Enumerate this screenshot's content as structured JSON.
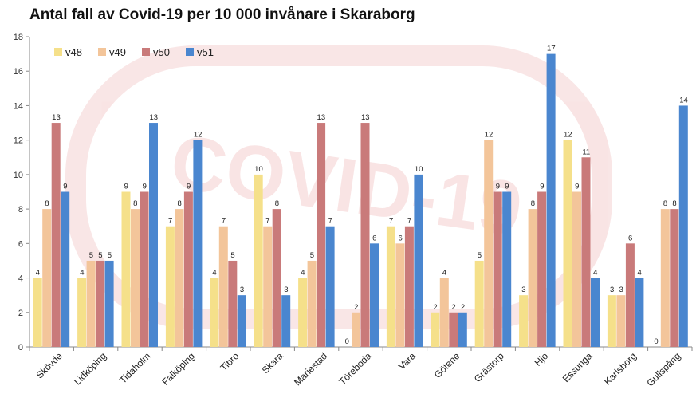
{
  "chart_data": {
    "type": "bar",
    "title": "Antal fall av Covid-19 per 10 000 invånare i Skaraborg",
    "categories": [
      "Skövde",
      "Lidköping",
      "Tidaholm",
      "Falköping",
      "Tibro",
      "Skara",
      "Mariestad",
      "Töreboda",
      "Vara",
      "Götene",
      "Grästorp",
      "Hjo",
      "Essunga",
      "Karlsborg",
      "Gullspång"
    ],
    "series": [
      {
        "name": "v48",
        "color": "#f5e08a",
        "values": [
          4,
          4,
          9,
          7,
          4,
          10,
          4,
          0,
          7,
          2,
          5,
          3,
          12,
          3,
          0
        ]
      },
      {
        "name": "v49",
        "color": "#f3c59a",
        "values": [
          8,
          5,
          8,
          8,
          7,
          7,
          5,
          2,
          6,
          4,
          12,
          8,
          9,
          3,
          8
        ]
      },
      {
        "name": "v50",
        "color": "#c97a7a",
        "values": [
          13,
          5,
          9,
          9,
          5,
          8,
          13,
          13,
          7,
          2,
          9,
          9,
          11,
          6,
          8
        ]
      },
      {
        "name": "v51",
        "color": "#4a86cf",
        "values": [
          9,
          5,
          13,
          12,
          3,
          3,
          7,
          6,
          10,
          2,
          9,
          17,
          4,
          4,
          14
        ]
      }
    ],
    "ylim": [
      0,
      18
    ],
    "yticks": [
      0,
      2,
      4,
      6,
      8,
      10,
      12,
      14,
      16,
      18
    ],
    "legend_position": "top-left",
    "grid": false,
    "watermark_text": "COVID-19"
  }
}
